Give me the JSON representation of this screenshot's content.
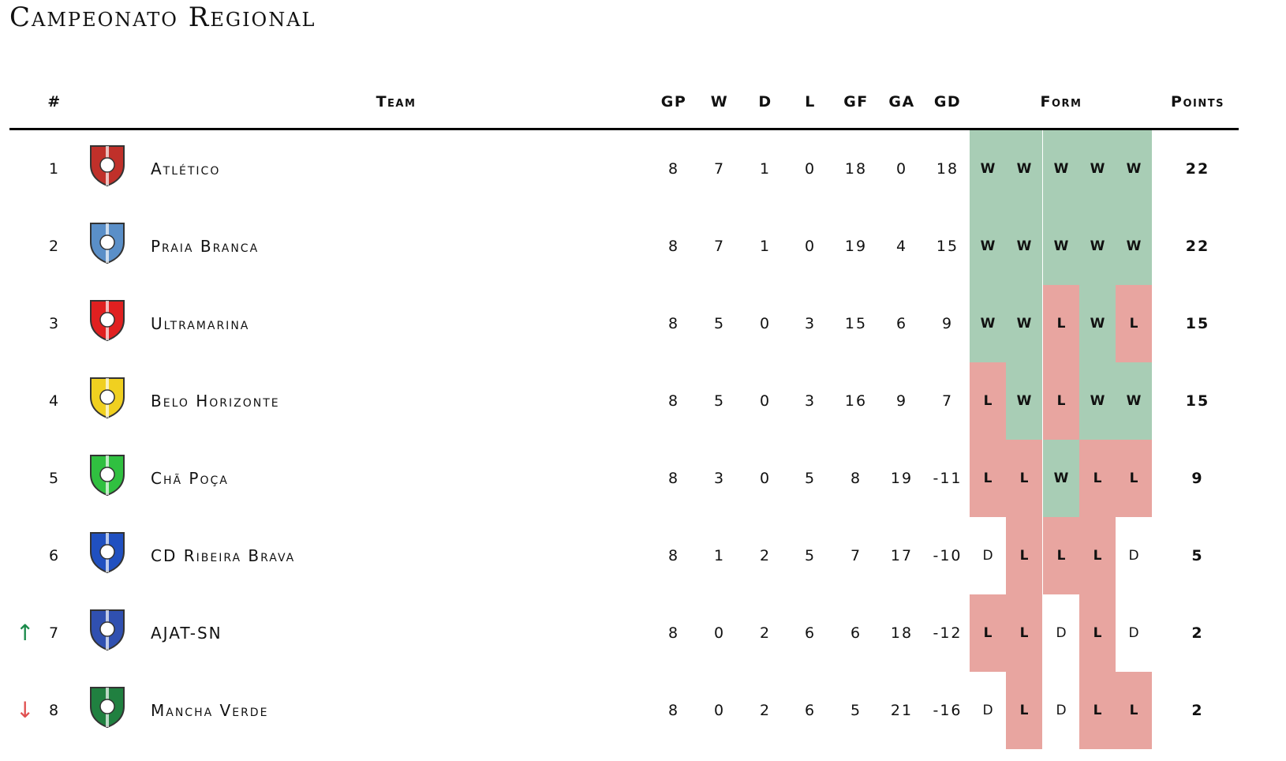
{
  "title": "Campeonato Regional",
  "headers": {
    "rank": "#",
    "team": "Team",
    "gp": "GP",
    "w": "W",
    "d": "D",
    "l": "L",
    "gf": "GF",
    "ga": "GA",
    "gd": "GD",
    "form": "Form",
    "points": "Points"
  },
  "colors": {
    "win": "#a8cdb5",
    "loss": "#e8a5a0",
    "promotion_arrow": "#1a8a4a",
    "relegation_arrow": "#e05050"
  },
  "rows": [
    {
      "rank": "1",
      "team": "Atlético",
      "gp": "8",
      "w": "7",
      "d": "1",
      "l": "0",
      "gf": "18",
      "ga": "0",
      "gd": "18",
      "form": [
        "W",
        "W",
        "W",
        "W",
        "W"
      ],
      "points": "22",
      "arrow": "",
      "logo_icon": "atletico-crest-icon",
      "logo_color": "#c0302a"
    },
    {
      "rank": "2",
      "team": "Praia Branca",
      "gp": "8",
      "w": "7",
      "d": "1",
      "l": "0",
      "gf": "19",
      "ga": "4",
      "gd": "15",
      "form": [
        "W",
        "W",
        "W",
        "W",
        "W"
      ],
      "points": "22",
      "arrow": "",
      "logo_icon": "praia-branca-crest-icon",
      "logo_color": "#5a8fc8"
    },
    {
      "rank": "3",
      "team": "Ultramarina",
      "gp": "8",
      "w": "5",
      "d": "0",
      "l": "3",
      "gf": "15",
      "ga": "6",
      "gd": "9",
      "form": [
        "W",
        "W",
        "L",
        "W",
        "L"
      ],
      "points": "15",
      "arrow": "",
      "logo_icon": "ultramarina-crest-icon",
      "logo_color": "#e02020"
    },
    {
      "rank": "4",
      "team": "Belo Horizonte",
      "gp": "8",
      "w": "5",
      "d": "0",
      "l": "3",
      "gf": "16",
      "ga": "9",
      "gd": "7",
      "form": [
        "L",
        "W",
        "L",
        "W",
        "W"
      ],
      "points": "15",
      "arrow": "",
      "logo_icon": "belo-horizonte-crest-icon",
      "logo_color": "#f0d020"
    },
    {
      "rank": "5",
      "team": "Chã Poça",
      "gp": "8",
      "w": "3",
      "d": "0",
      "l": "5",
      "gf": "8",
      "ga": "19",
      "gd": "-11",
      "form": [
        "L",
        "L",
        "W",
        "L",
        "L"
      ],
      "points": "9",
      "arrow": "",
      "logo_icon": "cha-poca-crest-icon",
      "logo_color": "#30c040"
    },
    {
      "rank": "6",
      "team": "CD Ribeira Brava",
      "gp": "8",
      "w": "1",
      "d": "2",
      "l": "5",
      "gf": "7",
      "ga": "17",
      "gd": "-10",
      "form": [
        "D",
        "L",
        "L",
        "L",
        "D"
      ],
      "points": "5",
      "arrow": "",
      "logo_icon": "ribeira-brava-crest-icon",
      "logo_color": "#2050c0"
    },
    {
      "rank": "7",
      "team": "AJAT-SN",
      "gp": "8",
      "w": "0",
      "d": "2",
      "l": "6",
      "gf": "6",
      "ga": "18",
      "gd": "-12",
      "form": [
        "L",
        "L",
        "D",
        "L",
        "D"
      ],
      "points": "2",
      "arrow": "↑",
      "logo_icon": "ajat-sn-crest-icon",
      "logo_color": "#3050b0"
    },
    {
      "rank": "8",
      "team": "Mancha Verde",
      "gp": "8",
      "w": "0",
      "d": "2",
      "l": "6",
      "gf": "5",
      "ga": "21",
      "gd": "-16",
      "form": [
        "D",
        "L",
        "D",
        "L",
        "L"
      ],
      "points": "2",
      "arrow": "↓",
      "logo_icon": "mancha-verde-crest-icon",
      "logo_color": "#208040"
    }
  ]
}
